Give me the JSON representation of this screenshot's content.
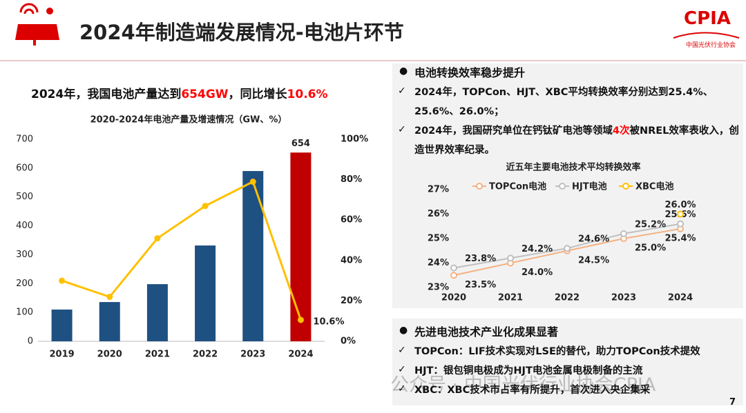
{
  "header": {
    "title": "2024年制造端发展情况-电池片环节",
    "logo": "CPIA",
    "logo_subtitle": "中国光伏行业协会"
  },
  "headline": [
    {
      "text": "2024年，我国电池产量达到"
    },
    {
      "text": "654GW",
      "color": "#ff0000"
    },
    {
      "text": "，同比增长"
    },
    {
      "text": "10.6%",
      "color": "#ff0000"
    }
  ],
  "chart_data": [
    {
      "type": "bar",
      "title": "2020-2024年电池产量及增速情况（GW、%）",
      "categories": [
        "2019",
        "2020",
        "2021",
        "2022",
        "2023",
        "2024"
      ],
      "series": [
        {
          "type": "bar",
          "colors": [
            "#1f5082",
            "#1f5082",
            "#1f5082",
            "#1f5082",
            "#1f5082",
            "#c00000"
          ],
          "values": [
            110,
            136,
            198,
            332,
            590,
            654
          ],
          "value_labels": [
            null,
            null,
            null,
            null,
            null,
            "654"
          ]
        },
        {
          "type": "line",
          "axis": "y2",
          "color": "#ffc000",
          "values": [
            30,
            22,
            51,
            67,
            79,
            10.6
          ],
          "value_labels": [
            null,
            null,
            null,
            null,
            null,
            "10.6%"
          ]
        }
      ],
      "ylim": [
        0,
        700
      ],
      "yticks": [
        0,
        100,
        200,
        300,
        400,
        500,
        600,
        700
      ],
      "y2lim": [
        0,
        100
      ],
      "y2ticks": [
        {
          "value": 0,
          "label": "0%"
        },
        {
          "value": 20,
          "label": "20%"
        },
        {
          "value": 40,
          "label": "40%"
        },
        {
          "value": 60,
          "label": "60%"
        },
        {
          "value": 80,
          "label": "80%"
        },
        {
          "value": 100,
          "label": "100%"
        }
      ]
    },
    {
      "type": "line",
      "title": "近五年主要电池技术平均转换效率",
      "categories": [
        "2020",
        "2021",
        "2022",
        "2023",
        "2024"
      ],
      "series": [
        {
          "name": "TOPCon电池",
          "color": "#f4b183",
          "values": [
            23.5,
            24.0,
            24.5,
            25.0,
            25.4
          ],
          "value_labels": [
            "23.5%",
            "24.0%",
            "24.5%",
            "25.0%",
            "25.4%"
          ],
          "label_side": "below"
        },
        {
          "name": "HJT电池",
          "color": "#bfbfbf",
          "values": [
            23.8,
            24.2,
            24.6,
            25.2,
            25.6
          ],
          "value_labels": [
            "23.8%",
            "24.2%",
            "24.6%",
            "25.2%",
            "25.6%"
          ],
          "label_side": "above"
        },
        {
          "name": "XBC电池",
          "color": "#ffc000",
          "values": [
            null,
            null,
            null,
            null,
            26.0
          ],
          "value_labels": [
            null,
            null,
            null,
            null,
            "26.0%"
          ],
          "label_side": "above"
        }
      ],
      "ylim": [
        23,
        27
      ],
      "yticks": [
        {
          "value": 23,
          "label": "23%"
        },
        {
          "value": 24,
          "label": "24%"
        },
        {
          "value": 25,
          "label": "25%"
        },
        {
          "value": 26,
          "label": "26%"
        },
        {
          "value": 27,
          "label": "27%"
        }
      ],
      "legend": "top"
    }
  ],
  "sections": [
    {
      "heading": "电池转换效率稳步提升",
      "bullets": [
        [
          {
            "text": "2024年，TOPCon、HJT、XBC平均转换效率分别达到25.4%、25.6%、26.0%；"
          }
        ],
        [
          {
            "text": "2024年，我国研究单位在钙钛矿电池等领域"
          },
          {
            "text": "4次",
            "color": "#ff0000"
          },
          {
            "text": "被NREL效率表收入，创造世界效率纪录。"
          }
        ]
      ]
    },
    {
      "heading": "先进电池技术产业化成果显著",
      "bullets": [
        [
          {
            "text": "TOPCon：LIF技术实现对LSE的替代，助力TOPCon技术提效"
          }
        ],
        [
          {
            "text": "HJT：银包铜电极成为HJT电池金属电极制备的主流"
          }
        ],
        [
          {
            "text": "XBC：XBC技术市占率有所提升，首次进入央企集采"
          }
        ]
      ]
    }
  ],
  "watermark": "公众号 · 中国光伏行业协会CPIA",
  "page_number": "7"
}
